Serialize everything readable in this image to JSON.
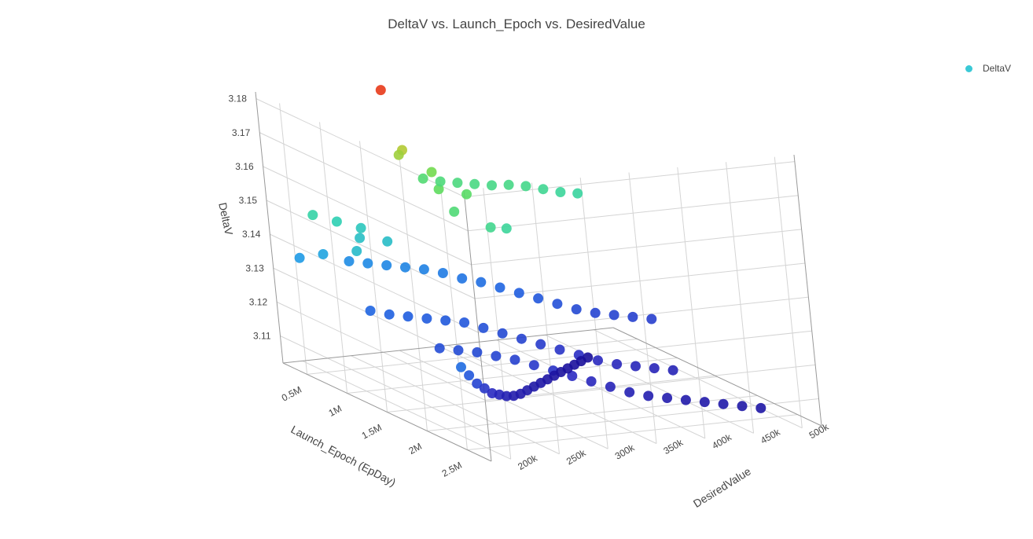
{
  "chart_data": {
    "type": "scatter3d",
    "title": "DeltaV vs. Launch_Epoch vs. DesiredValue",
    "legend": {
      "position": "top-right",
      "entries": [
        "DeltaV"
      ],
      "swatch_color": "#3ac9d6"
    },
    "axes": {
      "x": {
        "title": "DesiredValue",
        "ticks": [
          "200k",
          "250k",
          "300k",
          "350k",
          "400k",
          "450k",
          "500k"
        ],
        "range": [
          180000,
          520000
        ]
      },
      "y": {
        "title": "Launch_Epoch (EpDay)",
        "ticks": [
          "0.5M",
          "1M",
          "1.5M",
          "2M",
          "2.5M"
        ],
        "range": [
          200000,
          2800000
        ]
      },
      "z": {
        "title": "DeltaV",
        "ticks": [
          "3.18",
          "3.17",
          "3.16",
          "3.15",
          "3.14",
          "3.13",
          "3.12",
          "3.11"
        ],
        "range": [
          3.102,
          3.182
        ]
      }
    },
    "colorscale": [
      "#1a0f9a",
      "#2b2bc2",
      "#1f5fe0",
      "#1e9ee6",
      "#2fd2b0",
      "#63dd55",
      "#e0c020",
      "#e83a1a"
    ],
    "series": [
      {
        "name": "DeltaV",
        "points": [
          [
            300000,
            300000,
            3.18
          ],
          [
            300000,
            500000,
            3.1645
          ],
          [
            300000,
            450000,
            3.1625
          ],
          [
            320000,
            600000,
            3.1585
          ],
          [
            310000,
            800000,
            3.156
          ],
          [
            330000,
            900000,
            3.155
          ],
          [
            300000,
            1100000,
            3.153
          ],
          [
            320000,
            1300000,
            3.15
          ],
          [
            340000,
            1250000,
            3.1485
          ],
          [
            210000,
            400000,
            3.147
          ],
          [
            230000,
            450000,
            3.145
          ],
          [
            250000,
            500000,
            3.143
          ],
          [
            240000,
            600000,
            3.1415
          ],
          [
            260000,
            700000,
            3.141
          ],
          [
            220000,
            800000,
            3.1405
          ],
          [
            200000,
            300000,
            3.1335
          ],
          [
            215000,
            420000,
            3.1355
          ],
          [
            330000,
            350000,
            3.1535
          ],
          [
            345000,
            380000,
            3.1525
          ],
          [
            360000,
            410000,
            3.152
          ],
          [
            375000,
            440000,
            3.1515
          ],
          [
            390000,
            470000,
            3.151
          ],
          [
            405000,
            500000,
            3.151
          ],
          [
            420000,
            530000,
            3.1505
          ],
          [
            435000,
            560000,
            3.1495
          ],
          [
            450000,
            590000,
            3.1485
          ],
          [
            465000,
            620000,
            3.148
          ],
          [
            250000,
            300000,
            3.131
          ],
          [
            265000,
            350000,
            3.1305
          ],
          [
            280000,
            400000,
            3.13
          ],
          [
            295000,
            450000,
            3.1295
          ],
          [
            310000,
            500000,
            3.129
          ],
          [
            325000,
            550000,
            3.128
          ],
          [
            340000,
            600000,
            3.1265
          ],
          [
            355000,
            650000,
            3.1255
          ],
          [
            370000,
            700000,
            3.124
          ],
          [
            385000,
            750000,
            3.1225
          ],
          [
            400000,
            800000,
            3.121
          ],
          [
            415000,
            850000,
            3.1195
          ],
          [
            430000,
            900000,
            3.118
          ],
          [
            445000,
            950000,
            3.117
          ],
          [
            460000,
            1000000,
            3.1165
          ],
          [
            475000,
            1050000,
            3.116
          ],
          [
            490000,
            1100000,
            3.1155
          ],
          [
            220000,
            900000,
            3.124
          ],
          [
            235000,
            950000,
            3.123
          ],
          [
            250000,
            1000000,
            3.1225
          ],
          [
            265000,
            1050000,
            3.122
          ],
          [
            280000,
            1100000,
            3.1215
          ],
          [
            295000,
            1150000,
            3.121
          ],
          [
            310000,
            1200000,
            3.1195
          ],
          [
            325000,
            1250000,
            3.118
          ],
          [
            340000,
            1300000,
            3.1165
          ],
          [
            355000,
            1350000,
            3.115
          ],
          [
            370000,
            1400000,
            3.1135
          ],
          [
            385000,
            1450000,
            3.112
          ],
          [
            400000,
            1500000,
            3.1105
          ],
          [
            415000,
            1550000,
            3.1095
          ],
          [
            430000,
            1600000,
            3.109
          ],
          [
            445000,
            1650000,
            3.1085
          ],
          [
            460000,
            1700000,
            3.108
          ],
          [
            240000,
            1500000,
            3.119
          ],
          [
            255000,
            1550000,
            3.1185
          ],
          [
            270000,
            1600000,
            3.118
          ],
          [
            285000,
            1650000,
            3.117
          ],
          [
            300000,
            1700000,
            3.116
          ],
          [
            315000,
            1750000,
            3.1145
          ],
          [
            330000,
            1800000,
            3.113
          ],
          [
            345000,
            1850000,
            3.1115
          ],
          [
            360000,
            1900000,
            3.11
          ],
          [
            375000,
            1950000,
            3.1085
          ],
          [
            390000,
            2000000,
            3.107
          ],
          [
            405000,
            2050000,
            3.106
          ],
          [
            420000,
            2100000,
            3.1055
          ],
          [
            435000,
            2150000,
            3.105
          ],
          [
            450000,
            2200000,
            3.1045
          ],
          [
            465000,
            2250000,
            3.104
          ],
          [
            480000,
            2300000,
            3.1035
          ],
          [
            495000,
            2350000,
            3.103
          ],
          [
            190000,
            2400000,
            3.125
          ],
          [
            205000,
            2300000,
            3.121
          ],
          [
            220000,
            2200000,
            3.117
          ],
          [
            235000,
            2100000,
            3.114
          ],
          [
            250000,
            2000000,
            3.111
          ],
          [
            265000,
            1900000,
            3.109
          ],
          [
            280000,
            1800000,
            3.107
          ],
          [
            295000,
            1700000,
            3.1055
          ],
          [
            310000,
            1600000,
            3.1045
          ],
          [
            325000,
            1500000,
            3.104
          ],
          [
            340000,
            1400000,
            3.1035
          ],
          [
            355000,
            1300000,
            3.103
          ],
          [
            370000,
            1200000,
            3.1025
          ],
          [
            385000,
            1100000,
            3.102
          ],
          [
            400000,
            1000000,
            3.1015
          ],
          [
            415000,
            900000,
            3.101
          ],
          [
            430000,
            800000,
            3.1005
          ],
          [
            445000,
            700000,
            3.1
          ],
          [
            460000,
            600000,
            3.0995
          ]
        ]
      }
    ]
  }
}
